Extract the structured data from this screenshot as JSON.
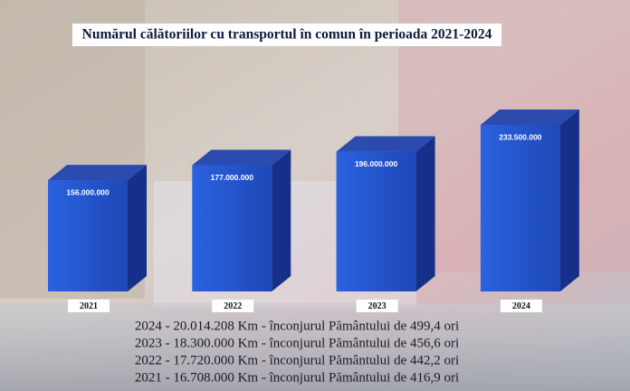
{
  "chart_data": {
    "type": "bar3d",
    "title": "Numărul călătoriilor cu transportul în comun în perioada 2021-2024",
    "categories": [
      "2021",
      "2022",
      "2023",
      "2024"
    ],
    "values": [
      156000000,
      177000000,
      196000000,
      233500000
    ],
    "value_labels": [
      "156.000.000",
      "177.000.000",
      "196.000.000",
      "233.500.000"
    ],
    "color": "#2457d0",
    "ylim": [
      0,
      250000000
    ],
    "annotations": [
      "2024 - 20.014.208 Km - înconjurul Pământului de 499,4 ori",
      "2023 - 18.300.000 Km - înconjurul Pământului de 456,6 ori",
      "2022 - 17.720.000 Km - înconjurul Pământului de 442,2 ori",
      "2021 - 16.708.000 Km - înconjurul Pământului de 416,9 ori"
    ]
  }
}
